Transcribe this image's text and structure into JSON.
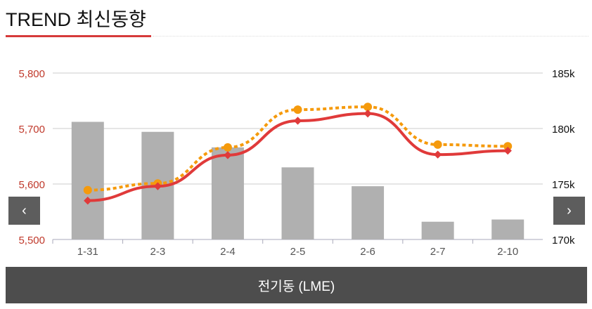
{
  "header": {
    "title": "TREND 최신동향"
  },
  "nav": {
    "prev": "‹",
    "next": "›"
  },
  "footer": {
    "label": "전기동 (LME)"
  },
  "colors": {
    "accent": "#d63a3a",
    "line1": "#e03a3a",
    "line2": "#f59a0c",
    "bars": "#b0b0b0"
  },
  "chart_data": {
    "type": "bar+line",
    "categories": [
      "1-31",
      "2-3",
      "2-4",
      "2-5",
      "2-6",
      "2-7",
      "2-10"
    ],
    "left_axis": {
      "range": [
        5500,
        5800
      ],
      "ticks": [
        "5,500",
        "5,600",
        "5,700",
        "5,800"
      ]
    },
    "right_axis": {
      "range": [
        170,
        185
      ],
      "ticks": [
        "170k",
        "175k",
        "180k",
        "185k"
      ]
    },
    "grid": true,
    "bars": {
      "axis": "right",
      "values": [
        180.6,
        179.7,
        178.3,
        176.5,
        174.8,
        171.6,
        171.8
      ]
    },
    "lines": [
      {
        "axis": "left",
        "style": "solid",
        "color": "#e03a3a",
        "values": [
          5570,
          5596,
          5652,
          5714,
          5727,
          5653,
          5660
        ]
      },
      {
        "axis": "left",
        "style": "dotted",
        "color": "#f59a0c",
        "values": [
          5589,
          5601,
          5666,
          5734,
          5739,
          5671,
          5668
        ]
      }
    ]
  }
}
